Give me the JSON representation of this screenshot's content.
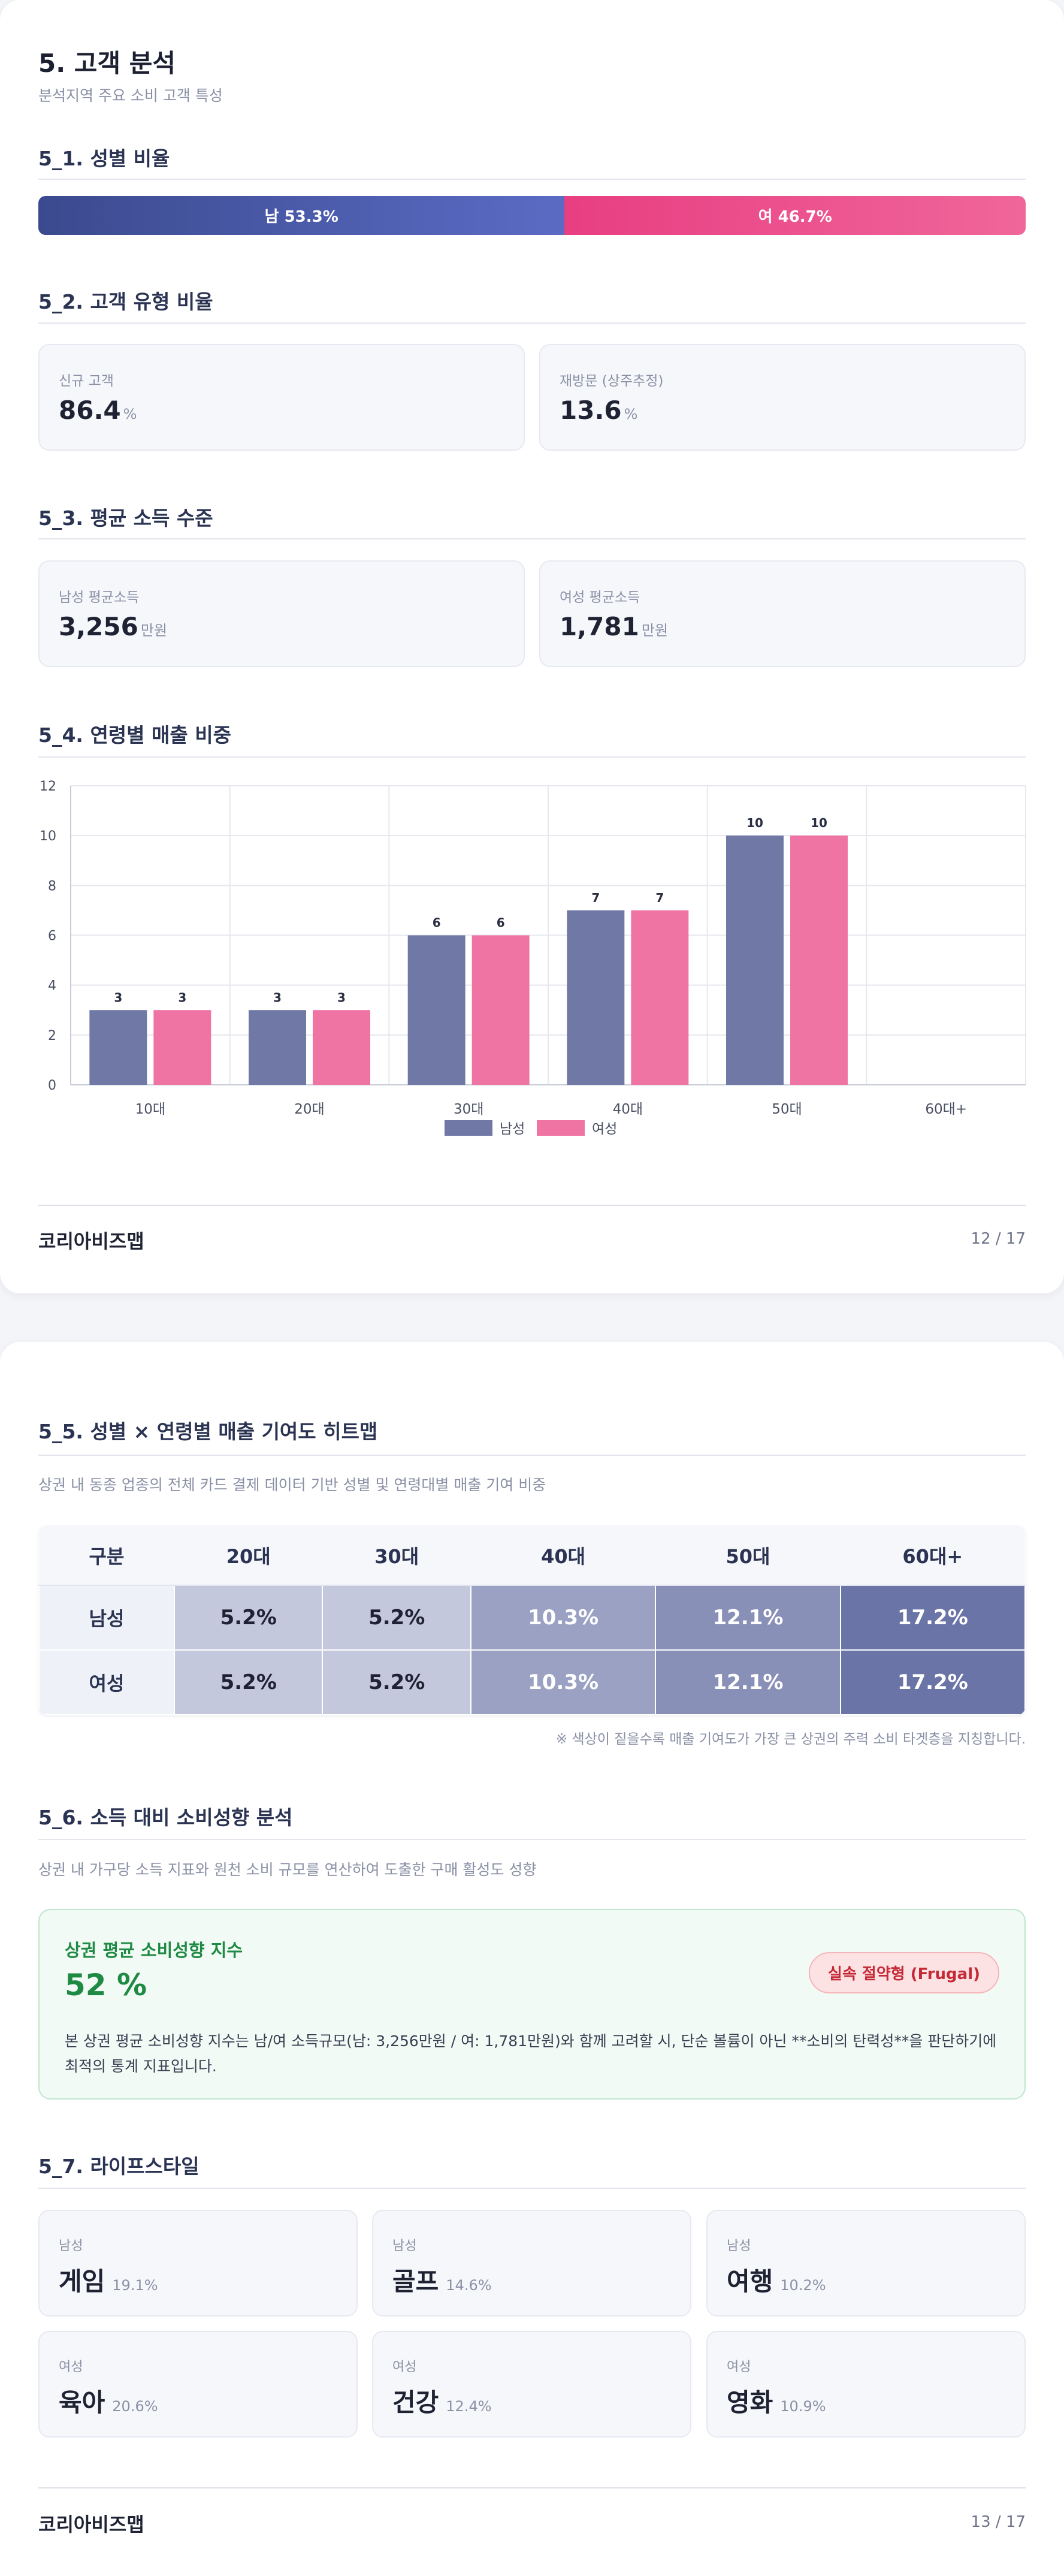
{
  "page1": {
    "title": "5. 고객 분석",
    "subtitle": "분석지역 주요 소비 고객 특성",
    "gender": {
      "title": "5_1. 성별 비율",
      "male_label": "남 53.3%",
      "female_label": "여 46.7%",
      "male_share": 53.3,
      "female_share": 46.7
    },
    "customer_type": {
      "title": "5_2. 고객 유형 비율",
      "cards": [
        {
          "label": "신규 고객",
          "value": "86.4",
          "unit": "%"
        },
        {
          "label": "재방문 (상주추정)",
          "value": "13.6",
          "unit": "%"
        }
      ]
    },
    "income": {
      "title": "5_3. 평균 소득 수준",
      "cards": [
        {
          "label": "남성 평균소득",
          "value": "3,256",
          "unit": "만원"
        },
        {
          "label": "여성 평균소득",
          "value": "1,781",
          "unit": "만원"
        }
      ]
    },
    "age_sales": {
      "title": "5_4. 연령별 매출 비중"
    },
    "footer": {
      "brand": "코리아비즈맵",
      "page": "12 / 17"
    }
  },
  "chart_data": {
    "type": "bar",
    "categories": [
      "10대",
      "20대",
      "30대",
      "40대",
      "50대",
      "60대+"
    ],
    "series": [
      {
        "name": "남성",
        "values": [
          3,
          3,
          6,
          7,
          10,
          null
        ],
        "color": "#7078a6"
      },
      {
        "name": "여성",
        "values": [
          3,
          3,
          6,
          7,
          10,
          null
        ],
        "color": "#ef74a4"
      }
    ],
    "ylim": [
      0,
      12
    ],
    "yticks": [
      0,
      2,
      4,
      6,
      8,
      10,
      12
    ],
    "grid": true,
    "legend": "bottom"
  },
  "page2": {
    "heatmap": {
      "title": "5_5. 성별 × 연령별 매출 기여도 히트맵",
      "subtitle": "상권 내 동종 업종의 전체 카드 결제 데이터 기반 성별 및 연령대별 매출 기여 비중",
      "header": [
        "구분",
        "20대",
        "30대",
        "40대",
        "50대",
        "60대+"
      ],
      "rows": [
        {
          "label": "남성",
          "cells": [
            "5.2%",
            "5.2%",
            "10.3%",
            "12.1%",
            "17.2%"
          ]
        },
        {
          "label": "여성",
          "cells": [
            "5.2%",
            "5.2%",
            "10.3%",
            "12.1%",
            "17.2%"
          ]
        }
      ],
      "note": "※ 색상이 짙을수록 매출 기여도가 가장 큰 상권의 주력 소비 타겟층을 지칭합니다."
    },
    "spending": {
      "title": "5_6. 소득 대비 소비성향 분석",
      "subtitle": "상권 내 가구당 소득 지표와 원천 소비 규모를 연산하여 도출한 구매 활성도 성향",
      "index_label": "상권 평균 소비성향 지수",
      "index_value": "52 %",
      "badge": "실속 절약형 (Frugal)",
      "description": "본 상권 평균 소비성향 지수는 남/여 소득규모(남: 3,256만원 / 여: 1,781만원)와 함께 고려할 시, 단순 볼륨이 아닌 **소비의 탄력성**을 판단하기에 최적의 통계 지표입니다."
    },
    "lifestyle": {
      "title": "5_7. 라이프스타일",
      "items": [
        {
          "gender": "남성",
          "name": "게임",
          "pct": "19.1%"
        },
        {
          "gender": "남성",
          "name": "골프",
          "pct": "14.6%"
        },
        {
          "gender": "남성",
          "name": "여행",
          "pct": "10.2%"
        },
        {
          "gender": "여성",
          "name": "육아",
          "pct": "20.6%"
        },
        {
          "gender": "여성",
          "name": "건강",
          "pct": "12.4%"
        },
        {
          "gender": "여성",
          "name": "영화",
          "pct": "10.9%"
        }
      ]
    },
    "footer": {
      "brand": "코리아비즈맵",
      "page": "13 / 17"
    }
  }
}
